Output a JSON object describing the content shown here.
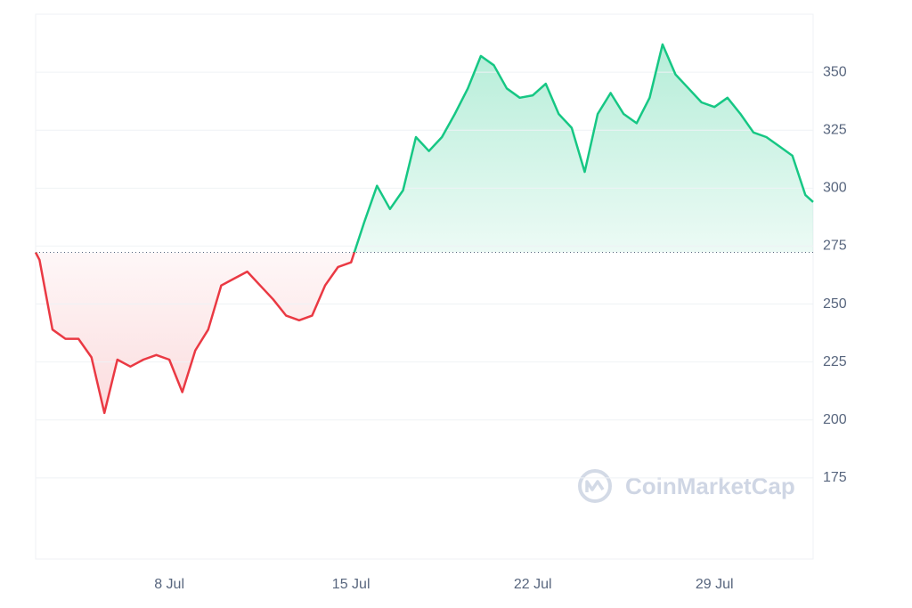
{
  "chart_data": {
    "type": "line",
    "x": [
      2.85,
      3.0,
      3.5,
      4.0,
      4.5,
      5.0,
      5.5,
      6.0,
      6.5,
      7.0,
      7.5,
      8.0,
      8.5,
      9.0,
      9.5,
      10.0,
      10.5,
      11.0,
      11.5,
      12.0,
      12.5,
      13.0,
      13.5,
      14.0,
      14.5,
      15.0,
      15.5,
      16.0,
      16.5,
      17.0,
      17.5,
      18.0,
      18.5,
      19.0,
      19.5,
      20.0,
      20.5,
      21.0,
      21.5,
      22.0,
      22.5,
      23.0,
      23.5,
      24.0,
      24.5,
      25.0,
      25.5,
      26.0,
      26.5,
      27.0,
      27.5,
      28.0,
      28.5,
      29.0,
      29.5,
      30.0,
      30.5,
      31.0,
      31.5,
      32.0,
      32.5,
      32.8
    ],
    "values": [
      272.3,
      269,
      239,
      235,
      235,
      227,
      203,
      226,
      223,
      226,
      228,
      226,
      212,
      230,
      239,
      258,
      261,
      264,
      258,
      252,
      245,
      243,
      245,
      258,
      266,
      268,
      285,
      301,
      291,
      299,
      322,
      316,
      322,
      332,
      343,
      357,
      353,
      343,
      339,
      340,
      345,
      332,
      326,
      307,
      332,
      341,
      332,
      328,
      339,
      362,
      349,
      343,
      337,
      335,
      339,
      332,
      324,
      322,
      318,
      314,
      297,
      294
    ],
    "baseline": 272.3,
    "color_up": "#16c784",
    "color_down": "#ea3943",
    "xlim": [
      2.85,
      32.8
    ],
    "xticks": [
      {
        "value": 8,
        "label": "8 Jul"
      },
      {
        "value": 15,
        "label": "15 Jul"
      },
      {
        "value": 22,
        "label": "22 Jul"
      },
      {
        "value": 29,
        "label": "29 Jul"
      }
    ],
    "ylim": [
      140,
      375
    ],
    "yticks": [
      175,
      200,
      225,
      250,
      275,
      300,
      325,
      350
    ],
    "grid": true,
    "watermark": "CoinMarketCap"
  }
}
